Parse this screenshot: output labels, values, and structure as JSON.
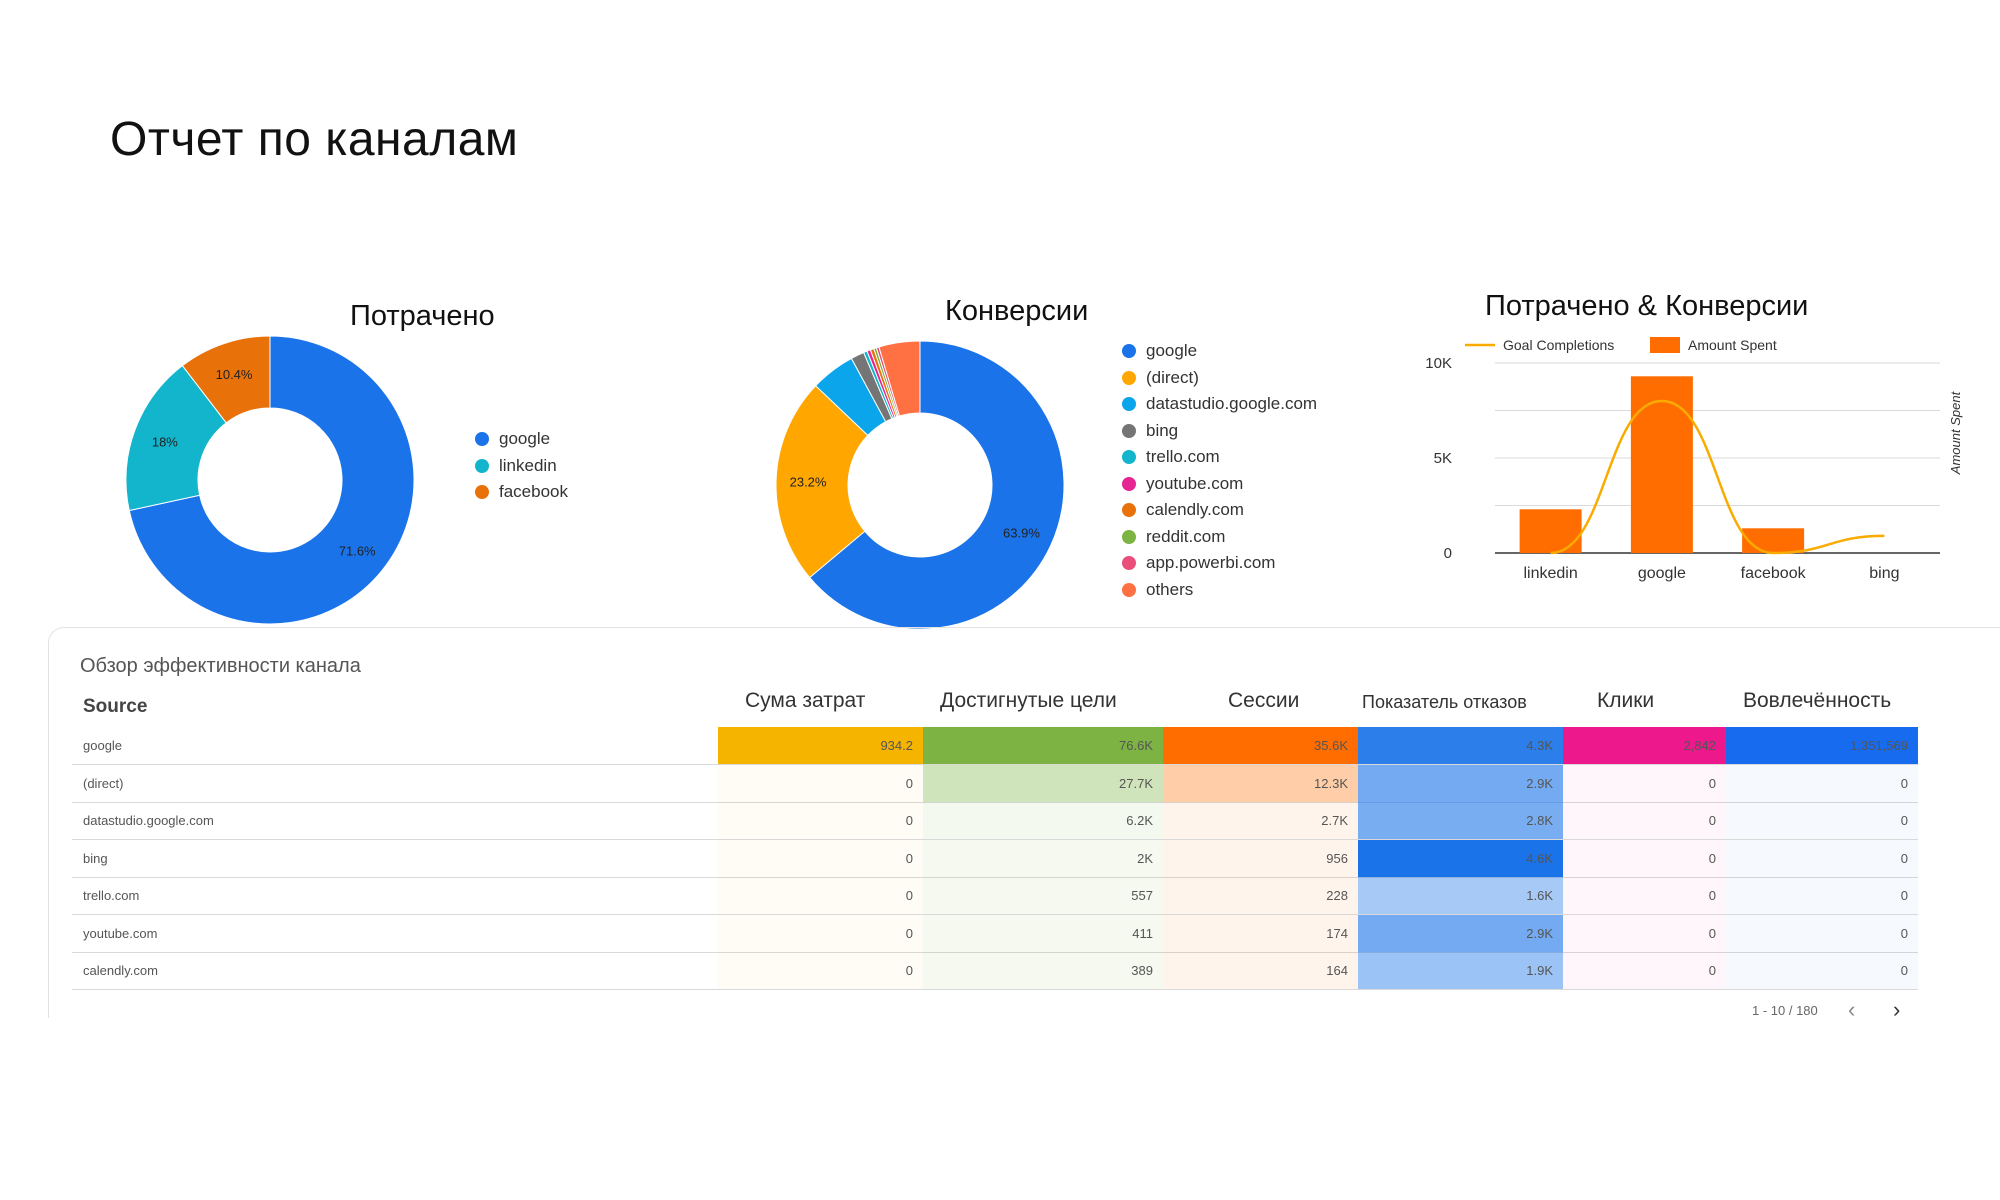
{
  "page_title": "Отчет по каналам",
  "chart_data": [
    {
      "type": "pie",
      "donut": true,
      "title": "Потрачено",
      "categories": [
        "google",
        "linkedin",
        "facebook"
      ],
      "values": [
        71.6,
        18,
        10.4
      ],
      "value_labels": [
        "71.6%",
        "18%",
        "10.4%"
      ],
      "colors": [
        "#1a73e8",
        "#12b5cb",
        "#e8710a"
      ],
      "legend": "right"
    },
    {
      "type": "pie",
      "donut": true,
      "title": "Конверсии",
      "categories": [
        "google",
        "(direct)",
        "datastudio.google.com",
        "bing",
        "trello.com",
        "youtube.com",
        "calendly.com",
        "reddit.com",
        "app.powerbi.com",
        "others"
      ],
      "values": [
        63.9,
        23.2,
        5.0,
        1.5,
        0.4,
        0.4,
        0.4,
        0.3,
        0.3,
        4.6
      ],
      "value_labels": [
        "63.9%",
        "23.2%",
        "",
        "",
        "",
        "",
        "",
        "",
        "",
        ""
      ],
      "colors": [
        "#1a73e8",
        "#ffa600",
        "#0ba5ec",
        "#757575",
        "#12b5cb",
        "#e52592",
        "#e8710a",
        "#7cb342",
        "#e94f7a",
        "#ff7043"
      ],
      "legend": "right"
    },
    {
      "type": "bar",
      "title": "Потрачено & Конверсии",
      "categories": [
        "linkedin",
        "google",
        "facebook",
        "bing"
      ],
      "series": [
        {
          "name": "Amount Spent",
          "type": "bar",
          "values": [
            2300,
            9300,
            1300,
            0
          ],
          "color": "#ff6d00"
        },
        {
          "name": "Goal Completions",
          "type": "line",
          "values": [
            0,
            8000,
            0,
            900
          ],
          "color": "#f9ab00"
        }
      ],
      "ylim": [
        0,
        10000
      ],
      "yticks": [
        "0",
        "5K",
        "10K"
      ],
      "y2label": "Amount Spent",
      "legend": "top",
      "grid": true
    }
  ],
  "table": {
    "caption": "Обзор эффективности канала",
    "source_header": "Source",
    "columns": [
      "Сума затрат",
      "Достигнутые цели",
      "Сессии",
      "Показатель отказов",
      "Клики",
      "Вовлечённость"
    ],
    "rows": [
      {
        "source": "google",
        "values": [
          "934.2",
          "76.6K",
          "35.6K",
          "4.3K",
          "2,842",
          "1,351,569"
        ]
      },
      {
        "source": "(direct)",
        "values": [
          "0",
          "27.7K",
          "12.3K",
          "2.9K",
          "0",
          "0"
        ]
      },
      {
        "source": "datastudio.google.com",
        "values": [
          "0",
          "6.2K",
          "2.7K",
          "2.8K",
          "0",
          "0"
        ]
      },
      {
        "source": "bing",
        "values": [
          "0",
          "2K",
          "956",
          "4.6K",
          "0",
          "0"
        ]
      },
      {
        "source": "trello.com",
        "values": [
          "0",
          "557",
          "228",
          "1.6K",
          "0",
          "0"
        ]
      },
      {
        "source": "youtube.com",
        "values": [
          "0",
          "411",
          "174",
          "2.9K",
          "0",
          "0"
        ]
      },
      {
        "source": "calendly.com",
        "values": [
          "0",
          "389",
          "164",
          "1.9K",
          "0",
          "0"
        ]
      }
    ],
    "pagination": "1 - 10 / 180",
    "prev_icon": "‹",
    "next_icon": "›"
  }
}
